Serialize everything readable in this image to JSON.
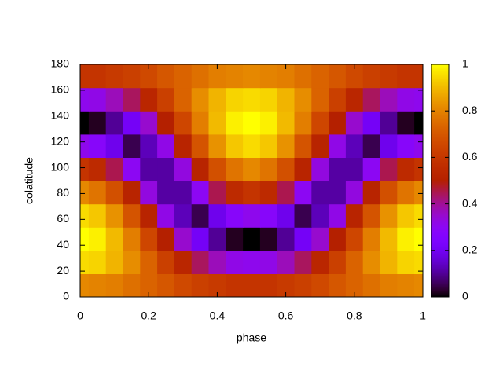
{
  "chart_data": {
    "type": "heatmap",
    "xlabel": "phase",
    "ylabel": "colatitude",
    "x": [
      0,
      0.05,
      0.1,
      0.15,
      0.2,
      0.25,
      0.3,
      0.35,
      0.4,
      0.45,
      0.5,
      0.55,
      0.6,
      0.65,
      0.7,
      0.75,
      0.8,
      0.85,
      0.9,
      0.95,
      1
    ],
    "y": [
      9,
      27,
      45,
      63,
      81,
      99,
      117,
      135,
      153,
      171
    ],
    "z": [
      [
        0.81,
        0.8,
        0.79,
        0.76,
        0.73,
        0.7,
        0.66,
        0.63,
        0.61,
        0.59,
        0.59,
        0.59,
        0.61,
        0.63,
        0.66,
        0.7,
        0.73,
        0.76,
        0.79,
        0.8,
        0.81
      ],
      [
        0.95,
        0.94,
        0.89,
        0.82,
        0.73,
        0.63,
        0.53,
        0.44,
        0.37,
        0.32,
        0.31,
        0.32,
        0.37,
        0.44,
        0.53,
        0.63,
        0.73,
        0.82,
        0.89,
        0.94,
        0.95
      ],
      [
        1.0,
        0.98,
        0.9,
        0.79,
        0.65,
        0.5,
        0.35,
        0.21,
        0.1,
        0.02,
        0,
        0.02,
        0.1,
        0.21,
        0.35,
        0.5,
        0.65,
        0.79,
        0.9,
        0.98,
        1.0
      ],
      [
        0.95,
        0.92,
        0.83,
        0.69,
        0.52,
        0.32,
        0.13,
        0.05,
        0.19,
        0.28,
        0.31,
        0.28,
        0.19,
        0.05,
        0.13,
        0.32,
        0.52,
        0.69,
        0.83,
        0.92,
        0.95
      ],
      [
        0.81,
        0.77,
        0.68,
        0.52,
        0.33,
        0.11,
        0.11,
        0.3,
        0.45,
        0.55,
        0.59,
        0.55,
        0.45,
        0.3,
        0.11,
        0.11,
        0.33,
        0.52,
        0.68,
        0.77,
        0.81
      ],
      [
        0.59,
        0.55,
        0.45,
        0.3,
        0.11,
        0.11,
        0.33,
        0.52,
        0.68,
        0.77,
        0.81,
        0.77,
        0.68,
        0.52,
        0.33,
        0.11,
        0.11,
        0.3,
        0.45,
        0.55,
        0.59
      ],
      [
        0.31,
        0.28,
        0.19,
        0.05,
        0.13,
        0.32,
        0.52,
        0.69,
        0.83,
        0.92,
        0.95,
        0.92,
        0.83,
        0.69,
        0.52,
        0.32,
        0.13,
        0.05,
        0.19,
        0.28,
        0.31
      ],
      [
        0,
        0.02,
        0.1,
        0.21,
        0.35,
        0.5,
        0.65,
        0.79,
        0.9,
        0.98,
        1.0,
        0.98,
        0.9,
        0.79,
        0.65,
        0.5,
        0.35,
        0.21,
        0.1,
        0.02,
        0
      ],
      [
        0.31,
        0.32,
        0.37,
        0.44,
        0.53,
        0.63,
        0.73,
        0.82,
        0.89,
        0.94,
        0.95,
        0.94,
        0.89,
        0.82,
        0.73,
        0.63,
        0.53,
        0.44,
        0.37,
        0.32,
        0.31
      ],
      [
        0.59,
        0.59,
        0.61,
        0.63,
        0.66,
        0.7,
        0.73,
        0.76,
        0.79,
        0.8,
        0.81,
        0.8,
        0.79,
        0.76,
        0.73,
        0.7,
        0.66,
        0.63,
        0.61,
        0.59,
        0.59
      ]
    ],
    "xlim": [
      0,
      1
    ],
    "ylim": [
      0,
      180
    ],
    "xticks": [
      0,
      0.2,
      0.4,
      0.6,
      0.8,
      1
    ],
    "yticks": [
      0,
      20,
      40,
      60,
      80,
      100,
      120,
      140,
      160,
      180
    ],
    "colorbar": {
      "lim": [
        0,
        1
      ],
      "ticks": [
        0,
        0.2,
        0.4,
        0.6,
        0.8,
        1
      ]
    },
    "colormap": "gnuplot"
  }
}
